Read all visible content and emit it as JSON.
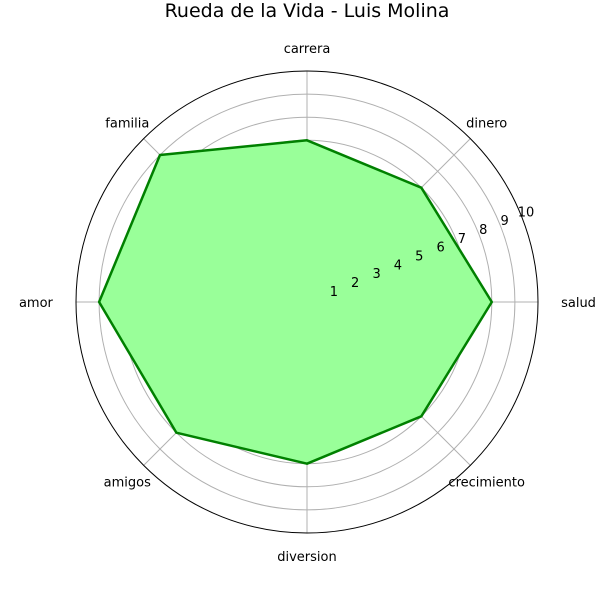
{
  "chart_data": {
    "type": "radar",
    "title": "Rueda de la Vida - Luis Molina",
    "categories": [
      "salud",
      "dinero",
      "carrera",
      "familia",
      "amor",
      "amigos",
      "diversion",
      "crecimiento"
    ],
    "values": [
      8,
      7,
      7,
      9,
      9,
      8,
      7,
      7
    ],
    "rlim": [
      0,
      10
    ],
    "rticks": [
      "1",
      "2",
      "3",
      "4",
      "5",
      "6",
      "7",
      "8",
      "9",
      "10"
    ],
    "grid": true,
    "colors": {
      "fill": "#99ff99",
      "line": "#008000"
    }
  }
}
